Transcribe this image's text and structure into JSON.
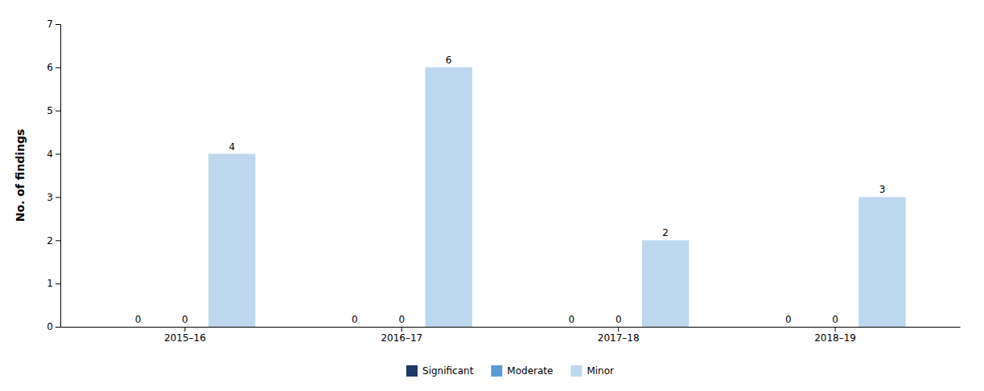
{
  "chart_data": {
    "type": "bar",
    "categories": [
      "2015–16",
      "2016–17",
      "2017–18",
      "2018–19"
    ],
    "series": [
      {
        "name": "Significant",
        "color": "#1f3864",
        "values": [
          0,
          0,
          0,
          0
        ]
      },
      {
        "name": "Moderate",
        "color": "#5b9bd5",
        "values": [
          0,
          0,
          0,
          0
        ]
      },
      {
        "name": "Minor",
        "color": "#bdd7ee",
        "values": [
          4,
          6,
          2,
          3
        ]
      }
    ],
    "ylabel": "No. of findings",
    "ylim": [
      0,
      7
    ],
    "yticks": [
      0,
      1,
      2,
      3,
      4,
      5,
      6,
      7
    ],
    "grid": false,
    "legend": "bottom",
    "data_labels": true
  }
}
